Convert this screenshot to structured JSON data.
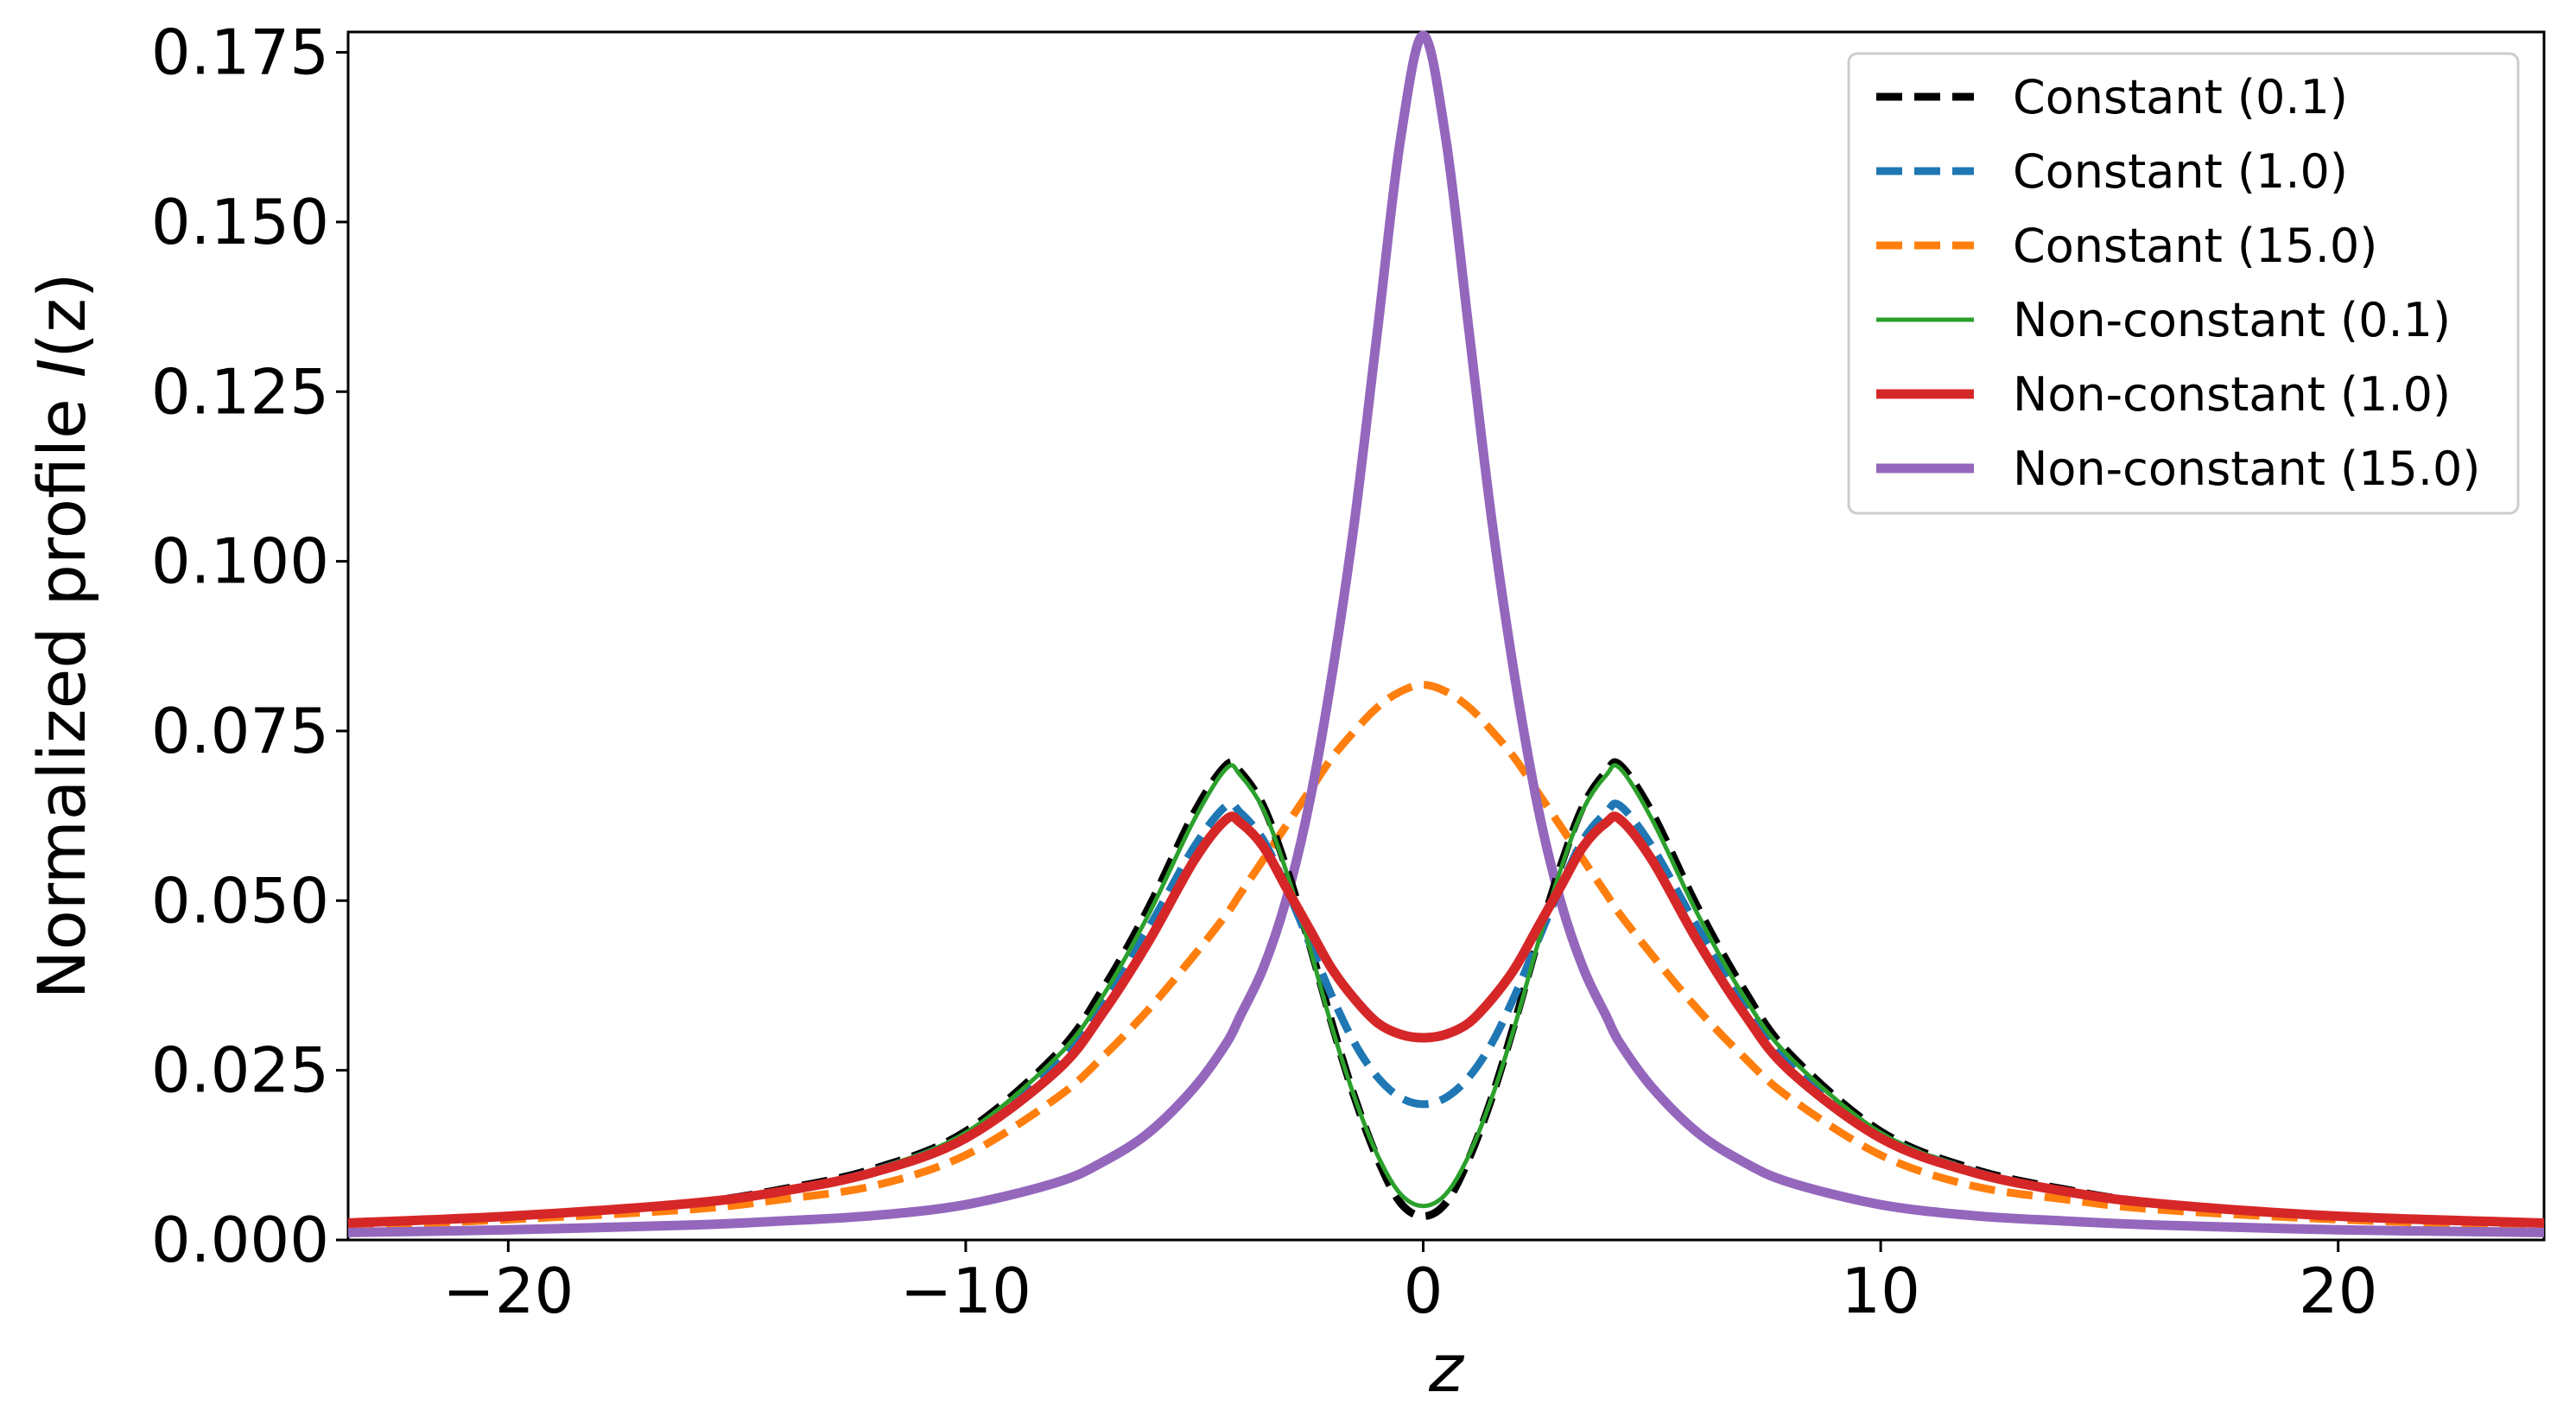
{
  "chart_data": {
    "type": "line",
    "title": "",
    "xlabel": "z",
    "ylabel_main": "Normalized profile ",
    "ylabel_italic": "I",
    "ylabel_paren": "(z)",
    "xlim": [
      -23.5,
      24.5
    ],
    "ylim": [
      0,
      0.178
    ],
    "xticks": [
      -20,
      -10,
      0,
      10,
      20
    ],
    "xtick_labels": [
      "−20",
      "−10",
      "0",
      "10",
      "20"
    ],
    "yticks": [
      0,
      0.025,
      0.05,
      0.075,
      0.1,
      0.125,
      0.15,
      0.175
    ],
    "ytick_labels": [
      "0.000",
      "0.025",
      "0.050",
      "0.075",
      "0.100",
      "0.125",
      "0.150",
      "0.175"
    ],
    "grid": false,
    "legend_position": "top-right",
    "x": [
      -23.5,
      -20,
      -16,
      -14,
      -12,
      -10,
      -8,
      -7,
      -6,
      -5,
      -4.3,
      -4,
      -3.5,
      -3,
      -2.5,
      -2,
      -1.5,
      -1,
      -0.5,
      0,
      0.5,
      1,
      1.5,
      2,
      2.5,
      3,
      3.5,
      4,
      4.3,
      5,
      6,
      7,
      8,
      10,
      12,
      14,
      16,
      20,
      24.5
    ],
    "series": [
      {
        "name": "Constant (0.1)",
        "color": "#000000",
        "dash": true,
        "width": 9,
        "values": [
          0.0025,
          0.0035,
          0.0055,
          0.0075,
          0.0105,
          0.016,
          0.0275,
          0.037,
          0.049,
          0.063,
          0.07,
          0.069,
          0.064,
          0.055,
          0.044,
          0.032,
          0.021,
          0.012,
          0.0055,
          0.0035,
          0.0055,
          0.012,
          0.021,
          0.032,
          0.044,
          0.055,
          0.064,
          0.069,
          0.07,
          0.063,
          0.049,
          0.037,
          0.0275,
          0.016,
          0.0105,
          0.0075,
          0.0055,
          0.0035,
          0.0025
        ]
      },
      {
        "name": "Constant (1.0)",
        "color": "#1f77b4",
        "dash": true,
        "width": 9,
        "values": [
          0.0025,
          0.0035,
          0.0055,
          0.0073,
          0.0102,
          0.0155,
          0.026,
          0.035,
          0.046,
          0.058,
          0.064,
          0.063,
          0.059,
          0.052,
          0.044,
          0.036,
          0.029,
          0.024,
          0.021,
          0.02,
          0.021,
          0.024,
          0.029,
          0.036,
          0.044,
          0.052,
          0.059,
          0.063,
          0.064,
          0.058,
          0.046,
          0.035,
          0.026,
          0.0155,
          0.0102,
          0.0073,
          0.0055,
          0.0035,
          0.0025
        ]
      },
      {
        "name": "Constant (15.0)",
        "color": "#ff7f0e",
        "dash": true,
        "width": 9,
        "values": [
          0.002,
          0.003,
          0.0045,
          0.006,
          0.008,
          0.0125,
          0.021,
          0.027,
          0.034,
          0.042,
          0.048,
          0.051,
          0.056,
          0.061,
          0.066,
          0.071,
          0.075,
          0.0785,
          0.0808,
          0.0818,
          0.0808,
          0.0785,
          0.075,
          0.071,
          0.066,
          0.061,
          0.056,
          0.051,
          0.048,
          0.042,
          0.034,
          0.027,
          0.021,
          0.0125,
          0.008,
          0.006,
          0.0045,
          0.003,
          0.002
        ]
      },
      {
        "name": "Non-constant (0.1)",
        "color": "#2ca02c",
        "dash": false,
        "width": 5,
        "values": [
          0.0025,
          0.0035,
          0.0055,
          0.0074,
          0.0104,
          0.0158,
          0.027,
          0.036,
          0.048,
          0.062,
          0.0695,
          0.0685,
          0.0635,
          0.0545,
          0.0435,
          0.0315,
          0.021,
          0.0125,
          0.0068,
          0.005,
          0.0068,
          0.0125,
          0.021,
          0.0315,
          0.0435,
          0.0545,
          0.0635,
          0.0685,
          0.0695,
          0.062,
          0.048,
          0.036,
          0.027,
          0.0158,
          0.0104,
          0.0074,
          0.0055,
          0.0035,
          0.0025
        ]
      },
      {
        "name": "Non-constant (1.0)",
        "color": "#d62728",
        "dash": false,
        "width": 11,
        "values": [
          0.0025,
          0.0035,
          0.0054,
          0.0072,
          0.01,
          0.015,
          0.025,
          0.0335,
          0.044,
          0.056,
          0.062,
          0.0615,
          0.058,
          0.052,
          0.046,
          0.04,
          0.0355,
          0.032,
          0.0303,
          0.0298,
          0.0303,
          0.032,
          0.0355,
          0.04,
          0.046,
          0.052,
          0.058,
          0.0615,
          0.062,
          0.056,
          0.044,
          0.0335,
          0.025,
          0.015,
          0.01,
          0.0072,
          0.0054,
          0.0035,
          0.0025
        ]
      },
      {
        "name": "Non-constant (15.0)",
        "color": "#9467bd",
        "dash": false,
        "width": 11,
        "values": [
          0.0011,
          0.0015,
          0.0022,
          0.0028,
          0.0036,
          0.0052,
          0.0085,
          0.0115,
          0.0158,
          0.0225,
          0.029,
          0.033,
          0.04,
          0.05,
          0.064,
          0.083,
          0.106,
          0.134,
          0.162,
          0.1775,
          0.162,
          0.134,
          0.106,
          0.083,
          0.064,
          0.05,
          0.04,
          0.033,
          0.029,
          0.0225,
          0.0158,
          0.0115,
          0.0085,
          0.0052,
          0.0036,
          0.0028,
          0.0022,
          0.0015,
          0.0011
        ]
      }
    ]
  }
}
